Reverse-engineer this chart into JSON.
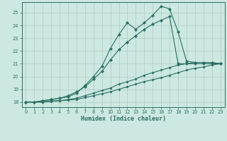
{
  "title": "",
  "xlabel": "Humidex (Indice chaleur)",
  "bg_color": "#cce8e0",
  "grid_color": "#aaccC4",
  "line_color": "#2a6e64",
  "xlim": [
    -0.5,
    23.5
  ],
  "ylim": [
    17.6,
    25.8
  ],
  "xticks": [
    0,
    1,
    2,
    3,
    4,
    5,
    6,
    7,
    8,
    9,
    10,
    11,
    12,
    13,
    14,
    15,
    16,
    17,
    18,
    19,
    20,
    21,
    22,
    23
  ],
  "yticks": [
    18,
    19,
    20,
    21,
    22,
    23,
    24,
    25
  ],
  "line1_x": [
    0,
    1,
    2,
    3,
    4,
    5,
    6,
    7,
    8,
    9,
    10,
    11,
    12,
    13,
    14,
    15,
    16,
    17,
    18,
    19,
    20,
    21,
    22,
    23
  ],
  "line1_y": [
    18.0,
    18.0,
    18.1,
    18.2,
    18.3,
    18.4,
    18.7,
    19.3,
    20.0,
    20.8,
    22.2,
    23.3,
    24.2,
    23.7,
    24.2,
    24.8,
    25.5,
    25.3,
    23.5,
    21.2,
    21.1,
    21.1,
    21.1,
    21.0
  ],
  "line2_x": [
    0,
    1,
    2,
    3,
    4,
    5,
    6,
    7,
    8,
    9,
    10,
    11,
    12,
    13,
    14,
    15,
    16,
    17,
    18,
    19,
    20,
    21,
    22,
    23
  ],
  "line2_y": [
    18.0,
    18.0,
    18.1,
    18.2,
    18.3,
    18.5,
    18.8,
    19.2,
    19.8,
    20.4,
    21.3,
    22.1,
    22.7,
    23.2,
    23.7,
    24.1,
    24.4,
    24.7,
    21.0,
    21.0,
    21.0,
    21.0,
    21.0,
    21.0
  ],
  "line3_x": [
    0,
    1,
    2,
    3,
    4,
    5,
    6,
    7,
    8,
    9,
    10,
    11,
    12,
    13,
    14,
    15,
    16,
    17,
    18,
    19,
    20,
    21,
    22,
    23
  ],
  "line3_y": [
    18.0,
    18.0,
    18.0,
    18.1,
    18.1,
    18.2,
    18.3,
    18.5,
    18.7,
    18.9,
    19.1,
    19.4,
    19.6,
    19.8,
    20.1,
    20.3,
    20.5,
    20.7,
    20.9,
    21.0,
    21.1,
    21.1,
    21.1,
    21.0
  ],
  "line4_x": [
    0,
    1,
    2,
    3,
    4,
    5,
    6,
    7,
    8,
    9,
    10,
    11,
    12,
    13,
    14,
    15,
    16,
    17,
    18,
    19,
    20,
    21,
    22,
    23
  ],
  "line4_y": [
    18.0,
    18.0,
    18.0,
    18.05,
    18.1,
    18.15,
    18.2,
    18.35,
    18.5,
    18.65,
    18.8,
    19.0,
    19.2,
    19.4,
    19.6,
    19.75,
    19.9,
    20.1,
    20.3,
    20.5,
    20.65,
    20.75,
    20.9,
    21.0
  ]
}
